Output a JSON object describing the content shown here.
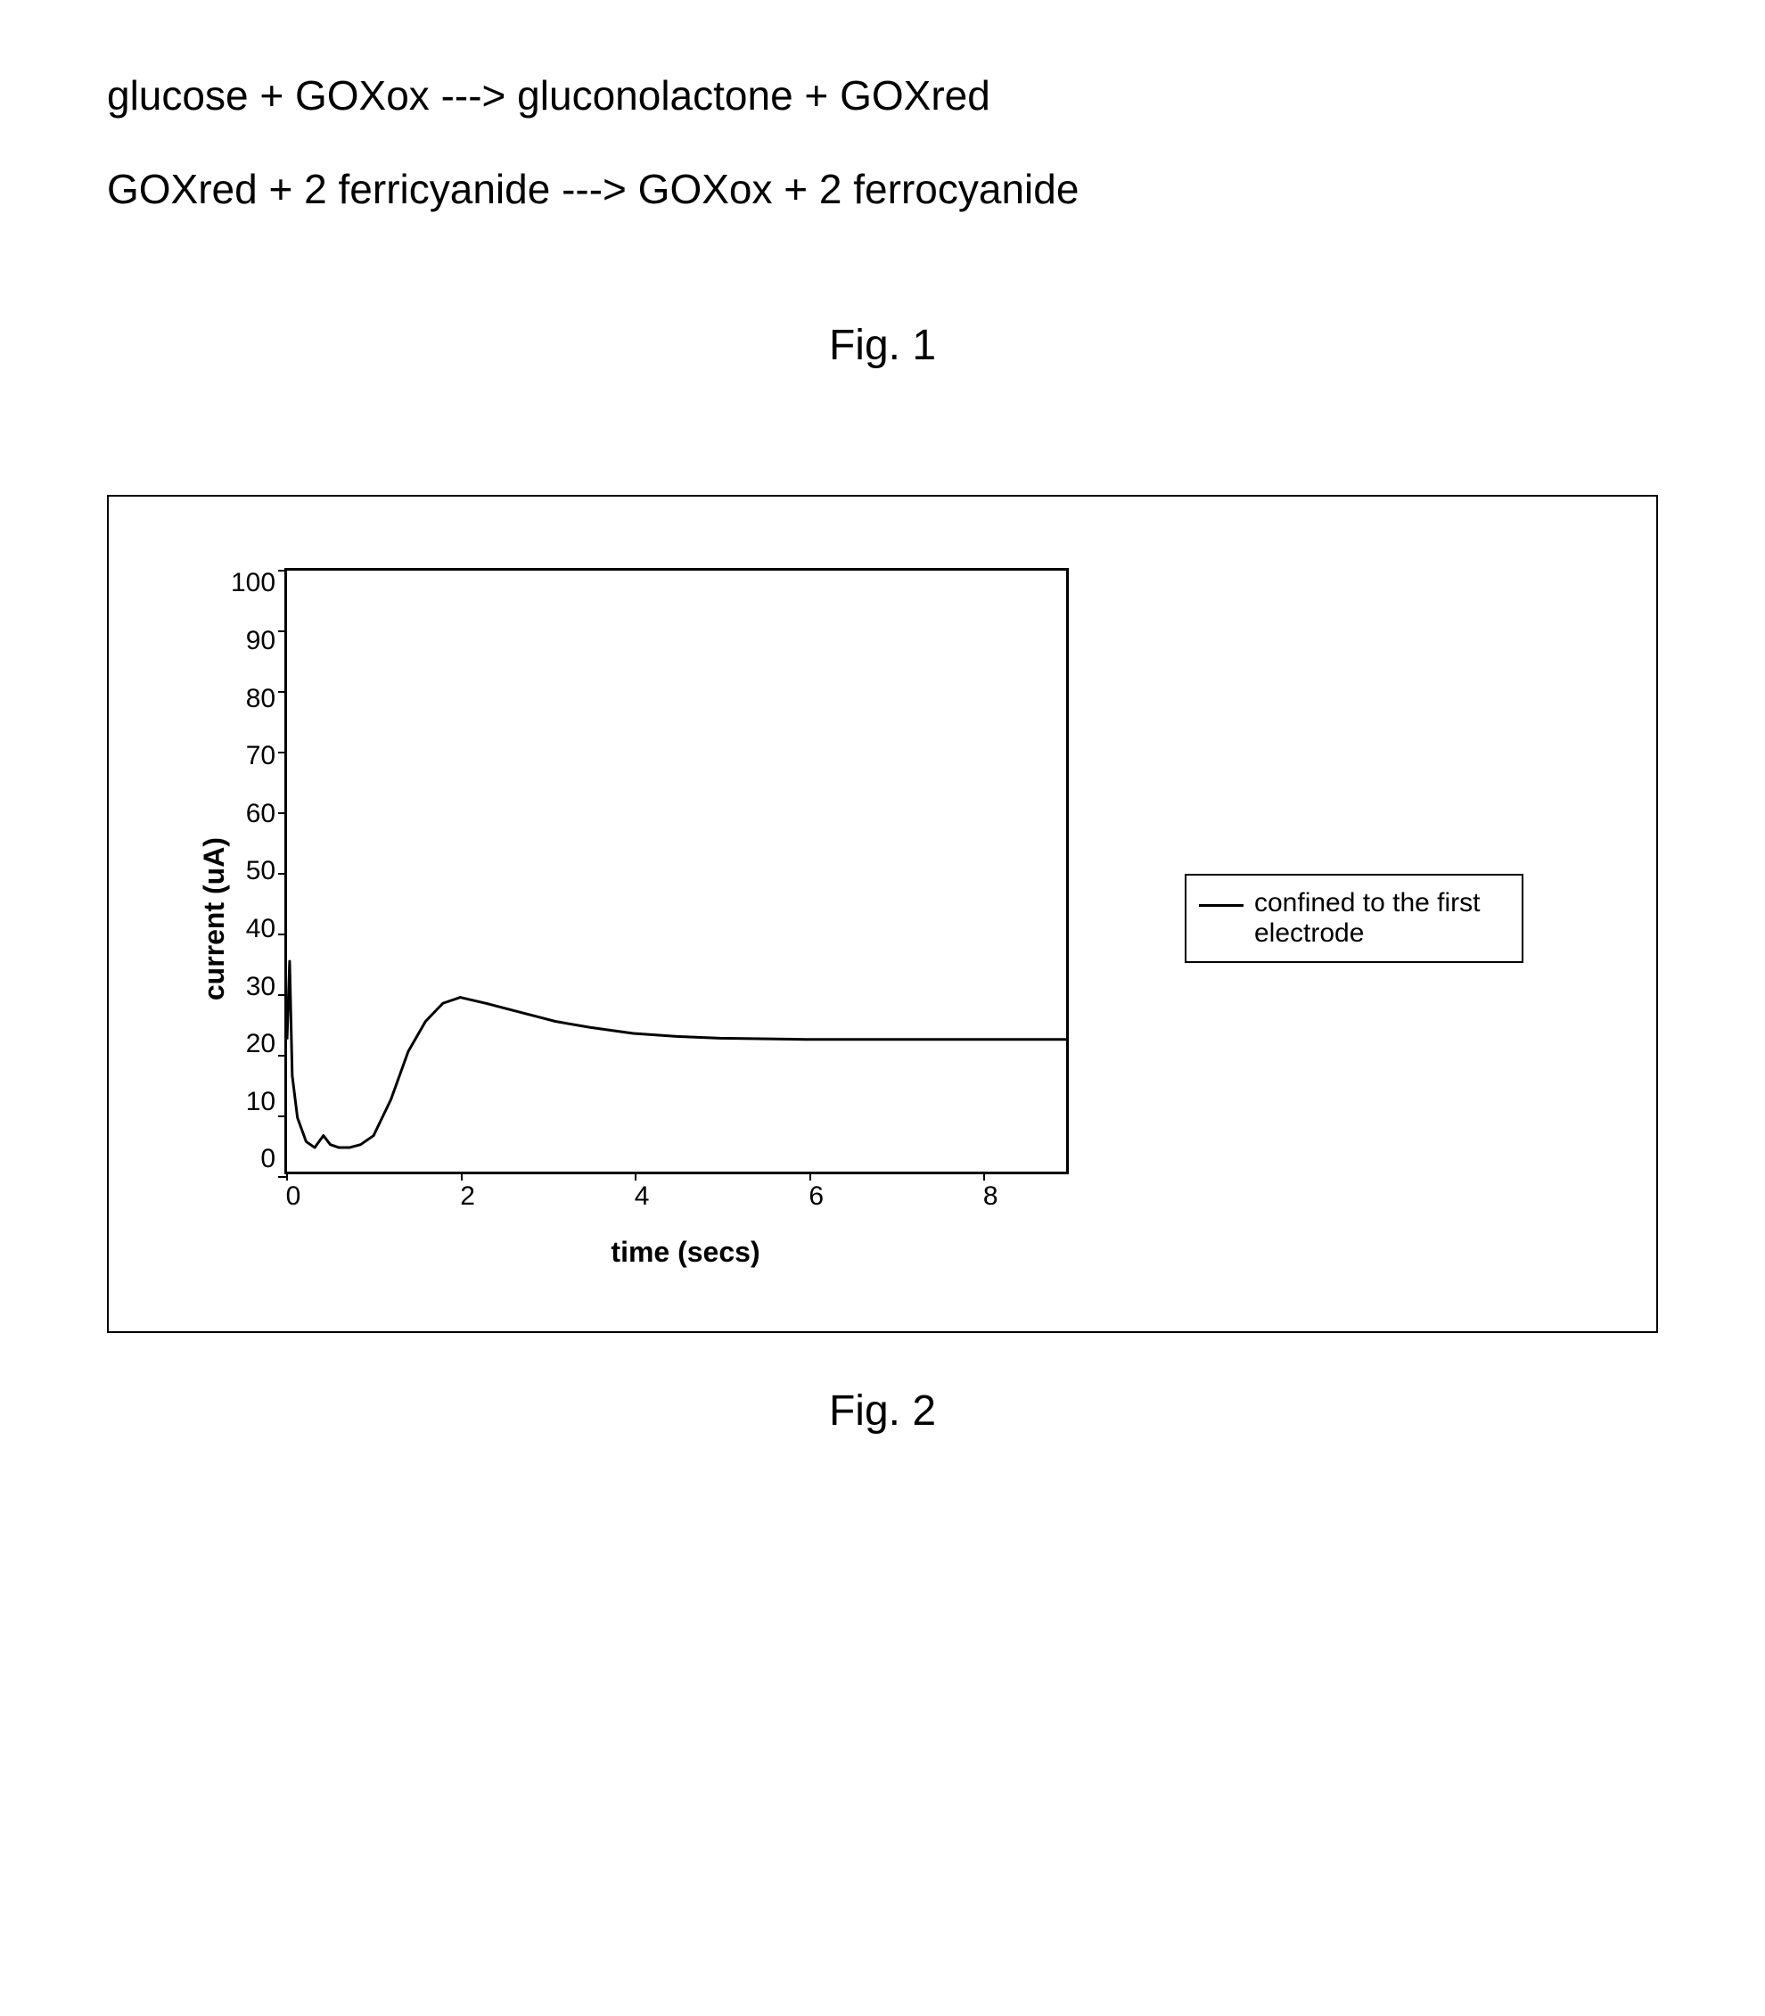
{
  "equations": {
    "line1": "glucose + GOXox ---> gluconolactone + GOXred",
    "line2": "GOXred + 2 ferricyanide ---> GOXox + 2 ferrocyanide"
  },
  "fig1_caption": "Fig. 1",
  "fig2_caption": "Fig. 2",
  "chart": {
    "type": "line",
    "xlabel": "time (secs)",
    "ylabel": "current (uA)",
    "xlim": [
      0,
      9
    ],
    "ylim": [
      0,
      100
    ],
    "xticks": [
      0,
      2,
      4,
      6,
      8
    ],
    "yticks": [
      0,
      10,
      20,
      30,
      40,
      50,
      60,
      70,
      80,
      90,
      100
    ],
    "legend_label": "confined to the first electrode",
    "series_color": "#000000",
    "line_width": 3,
    "background_color": "#ffffff",
    "border_color": "#000000",
    "label_fontsize": 32,
    "tick_fontsize": 30,
    "data": [
      {
        "x": 0.0,
        "y": 22
      },
      {
        "x": 0.03,
        "y": 35
      },
      {
        "x": 0.06,
        "y": 16
      },
      {
        "x": 0.12,
        "y": 9
      },
      {
        "x": 0.22,
        "y": 5
      },
      {
        "x": 0.32,
        "y": 4
      },
      {
        "x": 0.42,
        "y": 6
      },
      {
        "x": 0.5,
        "y": 4.5
      },
      {
        "x": 0.6,
        "y": 4
      },
      {
        "x": 0.72,
        "y": 4
      },
      {
        "x": 0.85,
        "y": 4.5
      },
      {
        "x": 1.0,
        "y": 6
      },
      {
        "x": 1.2,
        "y": 12
      },
      {
        "x": 1.4,
        "y": 20
      },
      {
        "x": 1.6,
        "y": 25
      },
      {
        "x": 1.8,
        "y": 28
      },
      {
        "x": 2.0,
        "y": 29
      },
      {
        "x": 2.3,
        "y": 28
      },
      {
        "x": 2.7,
        "y": 26.5
      },
      {
        "x": 3.1,
        "y": 25
      },
      {
        "x": 3.5,
        "y": 24
      },
      {
        "x": 4.0,
        "y": 23
      },
      {
        "x": 4.5,
        "y": 22.5
      },
      {
        "x": 5.0,
        "y": 22.2
      },
      {
        "x": 6.0,
        "y": 22
      },
      {
        "x": 7.0,
        "y": 22
      },
      {
        "x": 8.0,
        "y": 22
      },
      {
        "x": 9.0,
        "y": 22
      }
    ]
  }
}
